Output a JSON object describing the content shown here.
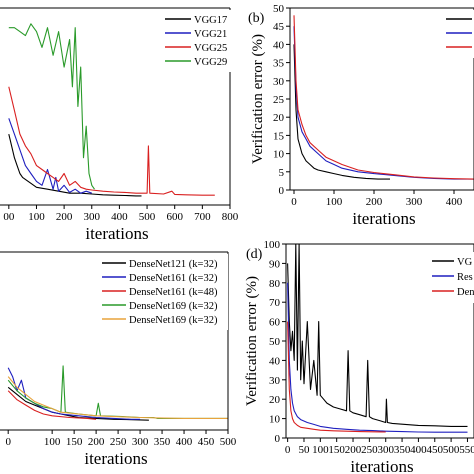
{
  "chart_data": [
    {
      "panel_label": "",
      "type": "line",
      "xlabel": "iterations",
      "ylabel": "",
      "xlim": [
        -50,
        800
      ],
      "ylim": [
        0,
        50
      ],
      "xticks": [
        "00",
        "100",
        "200",
        "300",
        "400",
        "500",
        "600",
        "700",
        "800"
      ],
      "xtick_values": [
        0,
        100,
        200,
        300,
        400,
        500,
        600,
        700,
        800
      ],
      "yticks": [],
      "legend_position": "top-right",
      "series": [
        {
          "name": "VGG17",
          "color": "#000000",
          "x": [
            0,
            10,
            20,
            30,
            40,
            50,
            60,
            80,
            100,
            140,
            180,
            220,
            260,
            300,
            340,
            380,
            420,
            460,
            480
          ],
          "y": [
            18,
            15,
            12,
            10,
            8,
            7,
            6.5,
            5.5,
            4.5,
            4,
            3.5,
            3,
            3,
            2.8,
            2.6,
            2.5,
            2.4,
            2.3,
            2.3
          ]
        },
        {
          "name": "VGG21",
          "color": "#1f1fbf",
          "x": [
            0,
            20,
            40,
            60,
            80,
            100,
            120,
            140,
            160,
            170,
            180,
            200,
            220,
            240,
            260,
            280,
            300
          ],
          "y": [
            22,
            18,
            14,
            10,
            8,
            6,
            5,
            9,
            4,
            7,
            3.5,
            5,
            3.2,
            4,
            3,
            3.5,
            3
          ]
        },
        {
          "name": "VGG25",
          "color": "#d92020",
          "x": [
            0,
            20,
            40,
            60,
            80,
            100,
            120,
            140,
            160,
            180,
            200,
            220,
            240,
            260,
            280,
            300,
            340,
            380,
            420,
            460,
            500,
            505,
            510,
            560,
            590,
            600,
            640,
            700,
            745
          ],
          "y": [
            30,
            24,
            18,
            15,
            13,
            10,
            9,
            8,
            7,
            6,
            8,
            5,
            6,
            4.5,
            4,
            3.8,
            3.5,
            3.3,
            3.2,
            3,
            3,
            15,
            3,
            2.8,
            3.5,
            2.7,
            2.6,
            2.5,
            2.5
          ]
        },
        {
          "name": "VGG29",
          "color": "#2a9a2a",
          "x": [
            0,
            20,
            40,
            60,
            80,
            100,
            120,
            140,
            160,
            180,
            200,
            220,
            230,
            240,
            250,
            260,
            270,
            280,
            290,
            300,
            310
          ],
          "y": [
            45,
            45,
            44,
            43,
            46,
            44,
            40,
            45,
            38,
            44,
            35,
            42,
            30,
            45,
            25,
            35,
            12,
            20,
            8,
            5,
            4
          ]
        }
      ]
    },
    {
      "panel_label": "(b)",
      "type": "line",
      "xlabel": "iterations",
      "ylabel": "Verification error (%)",
      "xlim": [
        -10,
        450
      ],
      "ylim": [
        0,
        50
      ],
      "xticks": [
        "0",
        "100",
        "200",
        "300",
        "400"
      ],
      "xtick_values": [
        0,
        100,
        200,
        300,
        400
      ],
      "yticks": [
        "0",
        "5",
        "10",
        "15",
        "20",
        "25",
        "30",
        "35",
        "40",
        "45",
        "50"
      ],
      "ytick_values": [
        0,
        5,
        10,
        15,
        20,
        25,
        30,
        35,
        40,
        45,
        50
      ],
      "legend_position": "top-right",
      "series": [
        {
          "name": "",
          "color": "#000000",
          "x": [
            0,
            5,
            10,
            20,
            30,
            40,
            50,
            60,
            80,
            100,
            120,
            150,
            180,
            210,
            240
          ],
          "y": [
            40,
            22,
            14,
            10,
            8,
            7,
            6,
            5.5,
            5,
            4.5,
            4,
            3.5,
            3.2,
            3,
            3
          ]
        },
        {
          "name": "",
          "color": "#1f1fbf",
          "x": [
            0,
            5,
            10,
            20,
            30,
            40,
            60,
            80,
            100,
            120,
            160,
            200,
            250,
            300,
            350,
            400,
            450
          ],
          "y": [
            45,
            28,
            20,
            16,
            14,
            12,
            10,
            8,
            7,
            6,
            5,
            4.5,
            4,
            3.5,
            3.2,
            3,
            3
          ]
        },
        {
          "name": "",
          "color": "#d92020",
          "x": [
            0,
            5,
            10,
            20,
            30,
            40,
            60,
            80,
            100,
            120,
            160,
            200,
            250,
            300,
            350,
            400,
            450
          ],
          "y": [
            48,
            30,
            22,
            18,
            15,
            13,
            11,
            9,
            8,
            7,
            5.5,
            4.8,
            4.2,
            3.6,
            3.3,
            3.1,
            3
          ]
        }
      ]
    },
    {
      "panel_label": "",
      "type": "line",
      "xlabel": "iterations",
      "ylabel": "",
      "xlim": [
        -30,
        500
      ],
      "ylim": [
        0,
        100
      ],
      "xticks": [
        "0",
        "100",
        "150",
        "200",
        "250",
        "300",
        "350",
        "400",
        "450",
        "500"
      ],
      "xtick_values": [
        0,
        100,
        150,
        200,
        250,
        300,
        350,
        400,
        450,
        500
      ],
      "yticks": [],
      "legend_position": "top-right",
      "series": [
        {
          "name": "DenseNet121 (k=32)",
          "color": "#000000",
          "x": [
            0,
            20,
            40,
            60,
            80,
            100,
            120,
            140,
            160,
            200,
            240,
            280,
            320
          ],
          "y": [
            24,
            20,
            16,
            14,
            12,
            10,
            9,
            8,
            7,
            6.5,
            6,
            5.8,
            5.5
          ]
        },
        {
          "name": "DenseNet161 (k=32)",
          "color": "#1f1fbf",
          "x": [
            0,
            10,
            20,
            30,
            40,
            60,
            80,
            100,
            120,
            160,
            200,
            240,
            280,
            300
          ],
          "y": [
            35,
            30,
            22,
            28,
            18,
            15,
            12,
            10,
            9,
            8,
            7,
            6.5,
            6,
            6
          ]
        },
        {
          "name": "DenseNet161 (k=48)",
          "color": "#d92020",
          "x": [
            0,
            20,
            40,
            60,
            80,
            100,
            140,
            180,
            200
          ],
          "y": [
            22,
            17,
            14,
            11,
            9,
            8,
            7,
            6.5,
            6
          ]
        },
        {
          "name": "DenseNet169 (k=32)",
          "color": "#2a9a2a",
          "x": [
            0,
            20,
            40,
            60,
            80,
            100,
            120,
            125,
            130,
            160,
            200,
            205,
            210,
            260,
            300,
            330,
            340,
            400,
            450,
            500
          ],
          "y": [
            28,
            22,
            18,
            15,
            13,
            12,
            10,
            36,
            10,
            9,
            8,
            15,
            8,
            7.5,
            7,
            7,
            6.5,
            6.5,
            6.5,
            6.5
          ]
        },
        {
          "name": "DenseNet169 (k=32)",
          "color": "#e8a33c",
          "x": [
            0,
            20,
            40,
            60,
            80,
            100,
            120,
            160,
            200,
            240,
            300,
            340,
            400,
            450,
            500
          ],
          "y": [
            30,
            24,
            20,
            16,
            14,
            12,
            10,
            9,
            8,
            7.5,
            7,
            6.8,
            6.5,
            6.5,
            6.5
          ]
        }
      ]
    },
    {
      "panel_label": "(d)",
      "type": "line",
      "xlabel": "iterations",
      "ylabel": "Verification error (%)",
      "xlim": [
        -5,
        570
      ],
      "ylim": [
        0,
        100
      ],
      "xticks": [
        "0",
        "50",
        "100",
        "150",
        "200",
        "250",
        "300",
        "350",
        "400",
        "450",
        "500",
        "550"
      ],
      "xtick_values": [
        0,
        50,
        100,
        150,
        200,
        250,
        300,
        350,
        400,
        450,
        500,
        550
      ],
      "yticks": [
        "0",
        "10",
        "20",
        "30",
        "40",
        "50",
        "60",
        "70",
        "80",
        "90",
        "100"
      ],
      "ytick_values": [
        0,
        10,
        20,
        30,
        40,
        50,
        60,
        70,
        80,
        90,
        100
      ],
      "legend_position": "top-right",
      "series": [
        {
          "name": "VG",
          "color": "#000000",
          "x": [
            0,
            5,
            10,
            15,
            20,
            25,
            30,
            35,
            40,
            45,
            50,
            60,
            70,
            80,
            90,
            95,
            100,
            110,
            120,
            140,
            160,
            180,
            185,
            190,
            200,
            220,
            240,
            245,
            250,
            260,
            280,
            300,
            302,
            305,
            320,
            360,
            400,
            450,
            500,
            550
          ],
          "y": [
            90,
            60,
            45,
            55,
            40,
            100,
            35,
            100,
            30,
            50,
            28,
            60,
            25,
            40,
            22,
            60,
            22,
            20,
            18,
            16,
            15,
            14,
            45,
            14,
            13,
            12,
            11,
            40,
            11,
            10,
            9,
            8,
            20,
            8,
            7.5,
            7,
            6.5,
            6.3,
            6,
            6
          ]
        },
        {
          "name": "Res",
          "color": "#1f1fbf",
          "x": [
            0,
            5,
            10,
            15,
            20,
            30,
            40,
            60,
            80,
            100,
            140,
            180,
            220,
            260,
            300,
            350,
            400,
            450,
            500,
            550
          ],
          "y": [
            80,
            40,
            25,
            18,
            14,
            11,
            9.5,
            8,
            7,
            6,
            5,
            4.5,
            4,
            3.8,
            3.5,
            3.3,
            3.1,
            3,
            3,
            3
          ]
        },
        {
          "name": "Dens",
          "color": "#d92020",
          "x": [
            0,
            5,
            10,
            15,
            20,
            30,
            40,
            60,
            80,
            100,
            140,
            180,
            220,
            260,
            300
          ],
          "y": [
            60,
            25,
            14,
            10,
            8,
            6.5,
            5.5,
            5,
            4.5,
            4,
            3.7,
            3.5,
            3.3,
            3.2,
            3.1
          ]
        }
      ]
    }
  ]
}
